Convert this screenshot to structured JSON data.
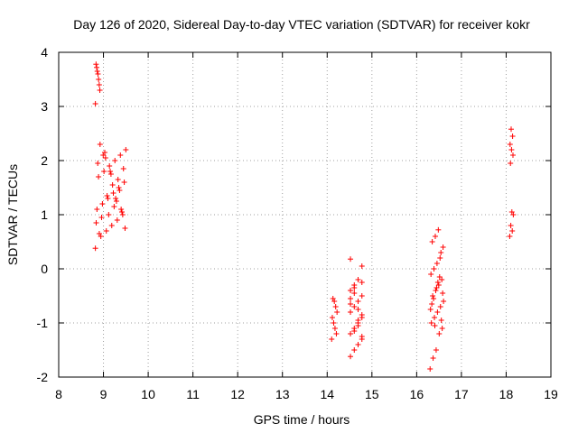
{
  "chart_data": {
    "type": "scatter",
    "title": "Day 126 of 2020, Sidereal Day-to-day VTEC variation (SDTVAR) for receiver kokr",
    "xlabel": "GPS time / hours",
    "ylabel": "SDTVAR / TECUs",
    "xlim": [
      8,
      19
    ],
    "ylim": [
      -2,
      4
    ],
    "x_ticks": [
      "8",
      "9",
      "10",
      "11",
      "12",
      "13",
      "14",
      "15",
      "16",
      "17",
      "18",
      "19"
    ],
    "y_ticks": [
      "-2",
      "-1",
      "0",
      "1",
      "2",
      "3",
      "4"
    ],
    "grid": true,
    "marker": "+",
    "marker_color": "#ff0000",
    "series": [
      {
        "name": "SDTVAR",
        "clusters": [
          {
            "x_start": 8.82,
            "x_end": 8.92,
            "y_points": [
              3.05,
              3.3,
              3.4,
              3.5,
              3.6,
              3.65,
              3.72,
              3.78
            ]
          },
          {
            "x_start": 8.82,
            "x_end": 9.5,
            "y_points": [
              0.38,
              0.6,
              0.7,
              0.8,
              0.9,
              1.0,
              1.1,
              1.2,
              1.3,
              1.4,
              1.5,
              1.6,
              1.7,
              1.8,
              1.9,
              2.0,
              2.1,
              2.2,
              2.3,
              2.05,
              1.75,
              1.25,
              1.05,
              0.85,
              0.95,
              1.35,
              1.55,
              1.65,
              1.85,
              1.95,
              2.1,
              1.0,
              1.15,
              1.45,
              0.75,
              0.65,
              2.15,
              1.8,
              1.3,
              1.1
            ]
          },
          {
            "x_start": 14.1,
            "x_end": 14.22,
            "y_points": [
              -1.3,
              -1.2,
              -1.1,
              -1.0,
              -0.9,
              -0.8,
              -0.7,
              -0.6,
              -0.55
            ]
          },
          {
            "x_start": 14.52,
            "x_end": 14.85,
            "y_points": [
              -1.62,
              -1.5,
              -1.4,
              -1.3,
              -1.2,
              -1.1,
              -1.0,
              -0.9,
              -0.8,
              -0.7,
              -0.6,
              -0.5,
              -0.4,
              -0.3,
              -0.2,
              0.05,
              0.18,
              -1.15,
              -0.95,
              -0.85,
              -0.65,
              -0.45,
              -0.75,
              -1.25,
              -0.55,
              -0.35,
              -1.05,
              -0.25
            ]
          },
          {
            "x_start": 16.3,
            "x_end": 16.6,
            "y_points": [
              -1.85,
              -1.65,
              -1.5,
              -1.2,
              -1.1,
              -1.0,
              -0.9,
              -0.8,
              -0.7,
              -0.6,
              -0.5,
              -0.4,
              -0.3,
              -0.2,
              -0.1,
              0.0,
              0.1,
              0.2,
              0.4,
              0.5,
              0.6,
              0.72,
              -0.95,
              -0.75,
              -0.55,
              -0.35,
              -0.15,
              -0.45,
              -0.65,
              -1.05,
              -0.25,
              0.3
            ]
          },
          {
            "x_start": 18.08,
            "x_end": 18.16,
            "y_points": [
              0.6,
              0.7,
              0.8,
              1.0,
              1.05,
              1.95,
              2.1,
              2.2,
              2.3,
              2.45,
              2.58
            ]
          }
        ]
      }
    ]
  }
}
